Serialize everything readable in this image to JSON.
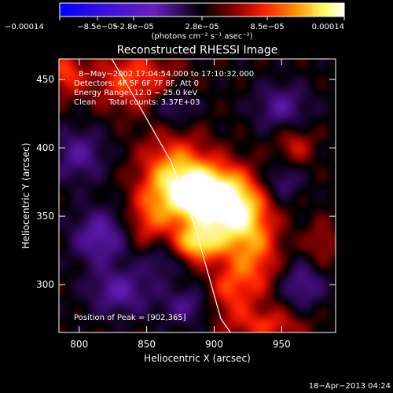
{
  "chart_data": {
    "type": "heatmap",
    "title": "Reconstructed RHESSI Image",
    "xlabel": "Heliocentric X (arcsec)",
    "ylabel": "Heliocentric Y (arcsec)",
    "xlim": [
      785,
      990
    ],
    "ylim": [
      265,
      465
    ],
    "x_ticks": [
      800,
      850,
      900,
      950
    ],
    "y_ticks": [
      300,
      350,
      400,
      450
    ],
    "colorbar": {
      "range": [
        -0.00014,
        0.00014
      ],
      "tick_labels": [
        "−0.00014",
        "−8.5e−05",
        "−2.8e−05",
        "2.8e−05",
        "8.5e−05",
        "0.00014"
      ],
      "units_label": "(photons cm⁻² s⁻¹ asec⁻²)"
    },
    "annotations": [
      "8−May−2002 17:04:54.000 to 17:10:32.000",
      "Detectors: 4F 5F 6F 7F 8F, Att 0",
      "Energy Range: 12.0 − 25.0 keV",
      "Clean     Total counts: 3.37E+03"
    ],
    "peak_label": "Position of Peak = [902,365]",
    "peak": [
      902,
      365
    ],
    "limb_curve": [
      [
        823,
        467
      ],
      [
        845,
        430
      ],
      [
        868,
        390
      ],
      [
        885,
        345
      ],
      [
        895,
        310
      ],
      [
        905,
        275
      ],
      [
        912,
        265
      ]
    ],
    "blobs": [
      {
        "x": 897,
        "y": 365,
        "sx": 22,
        "sy": 16,
        "v": 1.0
      },
      {
        "x": 870,
        "y": 378,
        "sx": 18,
        "sy": 22,
        "v": 0.6
      },
      {
        "x": 915,
        "y": 348,
        "sx": 16,
        "sy": 16,
        "v": 0.55
      },
      {
        "x": 888,
        "y": 330,
        "sx": 12,
        "sy": 9,
        "v": 0.7
      },
      {
        "x": 930,
        "y": 320,
        "sx": 14,
        "sy": 22,
        "v": 0.45
      },
      {
        "x": 910,
        "y": 295,
        "sx": 12,
        "sy": 16,
        "v": 0.35
      },
      {
        "x": 850,
        "y": 345,
        "sx": 10,
        "sy": 14,
        "v": 0.3
      },
      {
        "x": 840,
        "y": 450,
        "sx": 22,
        "sy": 16,
        "v": 0.45
      },
      {
        "x": 790,
        "y": 455,
        "sx": 9,
        "sy": 12,
        "v": 0.4
      },
      {
        "x": 960,
        "y": 402,
        "sx": 10,
        "sy": 10,
        "v": 0.3
      },
      {
        "x": 940,
        "y": 270,
        "sx": 20,
        "sy": 9,
        "v": 0.35
      },
      {
        "x": 980,
        "y": 330,
        "sx": 9,
        "sy": 12,
        "v": 0.25
      },
      {
        "x": 815,
        "y": 335,
        "sx": 14,
        "sy": 14,
        "v": -0.45
      },
      {
        "x": 800,
        "y": 395,
        "sx": 14,
        "sy": 14,
        "v": -0.35
      },
      {
        "x": 830,
        "y": 295,
        "sx": 16,
        "sy": 12,
        "v": -0.4
      },
      {
        "x": 880,
        "y": 285,
        "sx": 14,
        "sy": 10,
        "v": -0.3
      },
      {
        "x": 950,
        "y": 430,
        "sx": 14,
        "sy": 12,
        "v": -0.35
      },
      {
        "x": 950,
        "y": 375,
        "sx": 10,
        "sy": 10,
        "v": -0.3
      },
      {
        "x": 965,
        "y": 300,
        "sx": 12,
        "sy": 12,
        "v": -0.35
      },
      {
        "x": 870,
        "y": 430,
        "sx": 12,
        "sy": 10,
        "v": -0.3
      },
      {
        "x": 860,
        "y": 318,
        "sx": 10,
        "sy": 10,
        "v": -0.25
      }
    ]
  },
  "footer": {
    "timestamp": "18−Apr−2013 04:24"
  }
}
